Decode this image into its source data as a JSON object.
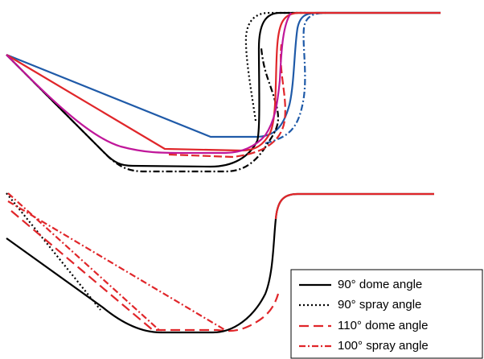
{
  "legend": {
    "entries": [
      "90° dome angle",
      "90° spray angle",
      "110° dome angle",
      "100° spray angle"
    ]
  }
}
